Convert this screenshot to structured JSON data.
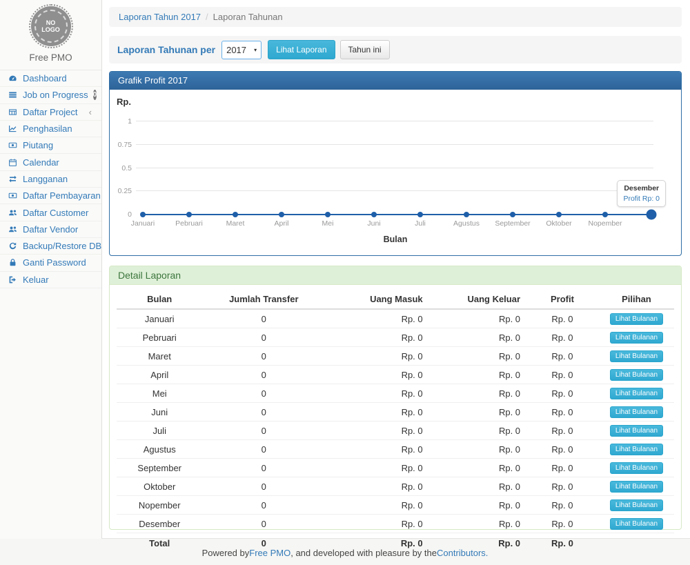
{
  "colors": {
    "accent_blue": "#337ab7",
    "panel_primary_header": "#2e6398",
    "panel_primary_border": "#2e6da4",
    "success_header_bg": "#dff0d8",
    "success_header_text": "#3c763d",
    "success_border": "#d6e9c6",
    "info_button_bg": "#39b3d7",
    "chart_line": "#1f5fa9",
    "badge_bg": "#777777"
  },
  "sidebar": {
    "logo_text_line1": "NO",
    "logo_text_line2": "LOGO",
    "brand": "Free PMO",
    "items": [
      {
        "label": "Dashboard",
        "icon": "dashboard-icon"
      },
      {
        "label": "Job on Progress",
        "icon": "tasks-icon",
        "badge": "0"
      },
      {
        "label": "Daftar Project",
        "icon": "table-icon",
        "chevron": "‹"
      },
      {
        "label": "Penghasilan",
        "icon": "line-chart-icon"
      },
      {
        "label": "Piutang",
        "icon": "money-icon"
      },
      {
        "label": "Calendar",
        "icon": "calendar-icon"
      },
      {
        "label": "Langganan",
        "icon": "exchange-icon"
      },
      {
        "label": "Daftar Pembayaran",
        "icon": "money-icon"
      },
      {
        "label": "Daftar Customer",
        "icon": "users-icon"
      },
      {
        "label": "Daftar Vendor",
        "icon": "users-icon"
      },
      {
        "label": "Backup/Restore DB",
        "icon": "refresh-icon"
      },
      {
        "label": "Ganti Password",
        "icon": "lock-icon"
      },
      {
        "label": "Keluar",
        "icon": "sign-out-icon"
      }
    ]
  },
  "breadcrumb": {
    "link": "Laporan Tahun 2017",
    "separator": "/",
    "current": "Laporan Tahunan"
  },
  "toolbar": {
    "label": "Laporan Tahunan per",
    "year_value": "2017",
    "caret": "▾",
    "view_report_button": "Lihat Laporan",
    "this_year_button": "Tahun ini"
  },
  "chart_panel": {
    "title": "Grafik Profit 2017"
  },
  "chart_data": {
    "type": "line",
    "title": "Grafik Profit 2017",
    "ylabel": "Rp.",
    "xlabel": "Bulan",
    "x": [
      "Januari",
      "Pebruari",
      "Maret",
      "April",
      "Mei",
      "Juni",
      "Juli",
      "Agustus",
      "September",
      "Oktober",
      "Nopember",
      "Desember"
    ],
    "series": [
      {
        "name": "Profit",
        "values": [
          0,
          0,
          0,
          0,
          0,
          0,
          0,
          0,
          0,
          0,
          0,
          0
        ]
      }
    ],
    "ylim": [
      0,
      1
    ],
    "yticks": [
      0,
      0.25,
      0.5,
      0.75,
      1
    ],
    "grid": true,
    "legend": false,
    "hidden_x_label": "Desember",
    "highlighted_point": {
      "x": "Desember",
      "tooltip_title": "Desember",
      "tooltip_value": "Profit Rp: 0"
    }
  },
  "detail_panel": {
    "title": "Detail Laporan",
    "columns": [
      "Bulan",
      "Jumlah Transfer",
      "Uang Masuk",
      "Uang Keluar",
      "Profit",
      "Pilihan"
    ],
    "action_label": "Lihat Bulanan",
    "rows": [
      {
        "bulan": "Januari",
        "jumlah_transfer": "0",
        "uang_masuk": "Rp. 0",
        "uang_keluar": "Rp. 0",
        "profit": "Rp. 0"
      },
      {
        "bulan": "Pebruari",
        "jumlah_transfer": "0",
        "uang_masuk": "Rp. 0",
        "uang_keluar": "Rp. 0",
        "profit": "Rp. 0"
      },
      {
        "bulan": "Maret",
        "jumlah_transfer": "0",
        "uang_masuk": "Rp. 0",
        "uang_keluar": "Rp. 0",
        "profit": "Rp. 0"
      },
      {
        "bulan": "April",
        "jumlah_transfer": "0",
        "uang_masuk": "Rp. 0",
        "uang_keluar": "Rp. 0",
        "profit": "Rp. 0"
      },
      {
        "bulan": "Mei",
        "jumlah_transfer": "0",
        "uang_masuk": "Rp. 0",
        "uang_keluar": "Rp. 0",
        "profit": "Rp. 0"
      },
      {
        "bulan": "Juni",
        "jumlah_transfer": "0",
        "uang_masuk": "Rp. 0",
        "uang_keluar": "Rp. 0",
        "profit": "Rp. 0"
      },
      {
        "bulan": "Juli",
        "jumlah_transfer": "0",
        "uang_masuk": "Rp. 0",
        "uang_keluar": "Rp. 0",
        "profit": "Rp. 0"
      },
      {
        "bulan": "Agustus",
        "jumlah_transfer": "0",
        "uang_masuk": "Rp. 0",
        "uang_keluar": "Rp. 0",
        "profit": "Rp. 0"
      },
      {
        "bulan": "September",
        "jumlah_transfer": "0",
        "uang_masuk": "Rp. 0",
        "uang_keluar": "Rp. 0",
        "profit": "Rp. 0"
      },
      {
        "bulan": "Oktober",
        "jumlah_transfer": "0",
        "uang_masuk": "Rp. 0",
        "uang_keluar": "Rp. 0",
        "profit": "Rp. 0"
      },
      {
        "bulan": "Nopember",
        "jumlah_transfer": "0",
        "uang_masuk": "Rp. 0",
        "uang_keluar": "Rp. 0",
        "profit": "Rp. 0"
      },
      {
        "bulan": "Desember",
        "jumlah_transfer": "0",
        "uang_masuk": "Rp. 0",
        "uang_keluar": "Rp. 0",
        "profit": "Rp. 0"
      }
    ],
    "total": {
      "bulan": "Total",
      "jumlah_transfer": "0",
      "uang_masuk": "Rp. 0",
      "uang_keluar": "Rp. 0",
      "profit": "Rp. 0"
    }
  },
  "footer": {
    "text_before": "Powered by ",
    "link1": "Free PMO",
    "text_middle": ", and developed with pleasure by the ",
    "link2": "Contributors."
  }
}
